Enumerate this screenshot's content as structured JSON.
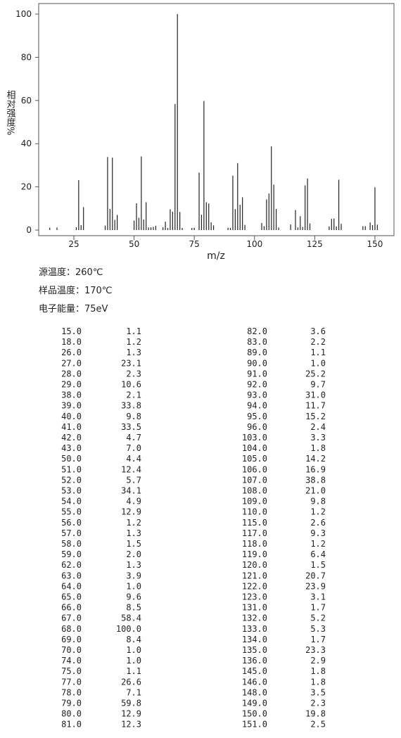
{
  "chart_data": {
    "type": "stick",
    "xlabel": "m/z",
    "ylabel": "相对强度%",
    "x": [
      15,
      18,
      26,
      27,
      28,
      29,
      38,
      39,
      40,
      41,
      42,
      43,
      50,
      51,
      52,
      53,
      54,
      55,
      56,
      57,
      58,
      59,
      62,
      63,
      64,
      65,
      66,
      67,
      68,
      69,
      70,
      74,
      75,
      77,
      78,
      79,
      80,
      81,
      82,
      83,
      89,
      90,
      91,
      92,
      93,
      94,
      95,
      96,
      103,
      104,
      105,
      106,
      107,
      108,
      109,
      110,
      115,
      117,
      118,
      119,
      120,
      121,
      122,
      123,
      131,
      132,
      133,
      134,
      135,
      136,
      145,
      146,
      148,
      149,
      150,
      151
    ],
    "values": [
      1.1,
      1.2,
      1.3,
      23.1,
      2.3,
      10.6,
      2.1,
      33.8,
      9.8,
      33.5,
      4.7,
      7.0,
      4.4,
      12.4,
      5.7,
      34.1,
      4.9,
      12.9,
      1.2,
      1.3,
      1.5,
      2.0,
      1.3,
      3.9,
      1.0,
      9.6,
      8.5,
      58.4,
      100.0,
      8.4,
      1.0,
      1.0,
      1.1,
      26.6,
      7.1,
      59.8,
      12.9,
      12.3,
      3.6,
      2.2,
      1.1,
      1.0,
      25.2,
      9.7,
      31.0,
      11.7,
      15.2,
      2.4,
      3.3,
      1.8,
      14.2,
      16.9,
      38.8,
      21.0,
      9.8,
      1.2,
      2.6,
      9.3,
      1.2,
      6.4,
      1.5,
      20.7,
      23.9,
      3.1,
      1.7,
      5.2,
      5.3,
      1.7,
      23.3,
      2.9,
      1.8,
      1.8,
      3.5,
      2.3,
      19.8,
      2.5
    ],
    "color": "#222222",
    "xlim": [
      10.4,
      157.9
    ],
    "xticks": [
      25,
      50,
      75,
      100,
      125,
      150
    ],
    "ylim": [
      -2.6,
      104.9
    ],
    "yticks": [
      0,
      20,
      40,
      60,
      80,
      100
    ]
  },
  "info": [
    "源温度：260℃",
    "样品温度：170℃",
    "电子能量：75eV"
  ],
  "table": {
    "rows": [
      [
        "15.0",
        "1.1"
      ],
      [
        "18.0",
        "1.2"
      ],
      [
        "26.0",
        "1.3"
      ],
      [
        "27.0",
        "23.1"
      ],
      [
        "28.0",
        "2.3"
      ],
      [
        "29.0",
        "10.6"
      ],
      [
        "38.0",
        "2.1"
      ],
      [
        "39.0",
        "33.8"
      ],
      [
        "40.0",
        "9.8"
      ],
      [
        "41.0",
        "33.5"
      ],
      [
        "42.0",
        "4.7"
      ],
      [
        "43.0",
        "7.0"
      ],
      [
        "50.0",
        "4.4"
      ],
      [
        "51.0",
        "12.4"
      ],
      [
        "52.0",
        "5.7"
      ],
      [
        "53.0",
        "34.1"
      ],
      [
        "54.0",
        "4.9"
      ],
      [
        "55.0",
        "12.9"
      ],
      [
        "56.0",
        "1.2"
      ],
      [
        "57.0",
        "1.3"
      ],
      [
        "58.0",
        "1.5"
      ],
      [
        "59.0",
        "2.0"
      ],
      [
        "62.0",
        "1.3"
      ],
      [
        "63.0",
        "3.9"
      ],
      [
        "64.0",
        "1.0"
      ],
      [
        "65.0",
        "9.6"
      ],
      [
        "66.0",
        "8.5"
      ],
      [
        "67.0",
        "58.4"
      ],
      [
        "68.0",
        "100.0"
      ],
      [
        "69.0",
        "8.4"
      ],
      [
        "70.0",
        "1.0"
      ],
      [
        "74.0",
        "1.0"
      ],
      [
        "75.0",
        "1.1"
      ],
      [
        "77.0",
        "26.6"
      ],
      [
        "78.0",
        "7.1"
      ],
      [
        "79.0",
        "59.8"
      ],
      [
        "80.0",
        "12.9"
      ],
      [
        "81.0",
        "12.3"
      ],
      [
        "82.0",
        "3.6"
      ],
      [
        "83.0",
        "2.2"
      ],
      [
        "89.0",
        "1.1"
      ],
      [
        "90.0",
        "1.0"
      ],
      [
        "91.0",
        "25.2"
      ],
      [
        "92.0",
        "9.7"
      ],
      [
        "93.0",
        "31.0"
      ],
      [
        "94.0",
        "11.7"
      ],
      [
        "95.0",
        "15.2"
      ],
      [
        "96.0",
        "2.4"
      ],
      [
        "103.0",
        "3.3"
      ],
      [
        "104.0",
        "1.8"
      ],
      [
        "105.0",
        "14.2"
      ],
      [
        "106.0",
        "16.9"
      ],
      [
        "107.0",
        "38.8"
      ],
      [
        "108.0",
        "21.0"
      ],
      [
        "109.0",
        "9.8"
      ],
      [
        "110.0",
        "1.2"
      ],
      [
        "115.0",
        "2.6"
      ],
      [
        "117.0",
        "9.3"
      ],
      [
        "118.0",
        "1.2"
      ],
      [
        "119.0",
        "6.4"
      ],
      [
        "120.0",
        "1.5"
      ],
      [
        "121.0",
        "20.7"
      ],
      [
        "122.0",
        "23.9"
      ],
      [
        "123.0",
        "3.1"
      ],
      [
        "131.0",
        "1.7"
      ],
      [
        "132.0",
        "5.2"
      ],
      [
        "133.0",
        "5.3"
      ],
      [
        "134.0",
        "1.7"
      ],
      [
        "135.0",
        "23.3"
      ],
      [
        "136.0",
        "2.9"
      ],
      [
        "145.0",
        "1.8"
      ],
      [
        "146.0",
        "1.8"
      ],
      [
        "148.0",
        "3.5"
      ],
      [
        "149.0",
        "2.3"
      ],
      [
        "150.0",
        "19.8"
      ],
      [
        "151.0",
        "2.5"
      ]
    ]
  }
}
